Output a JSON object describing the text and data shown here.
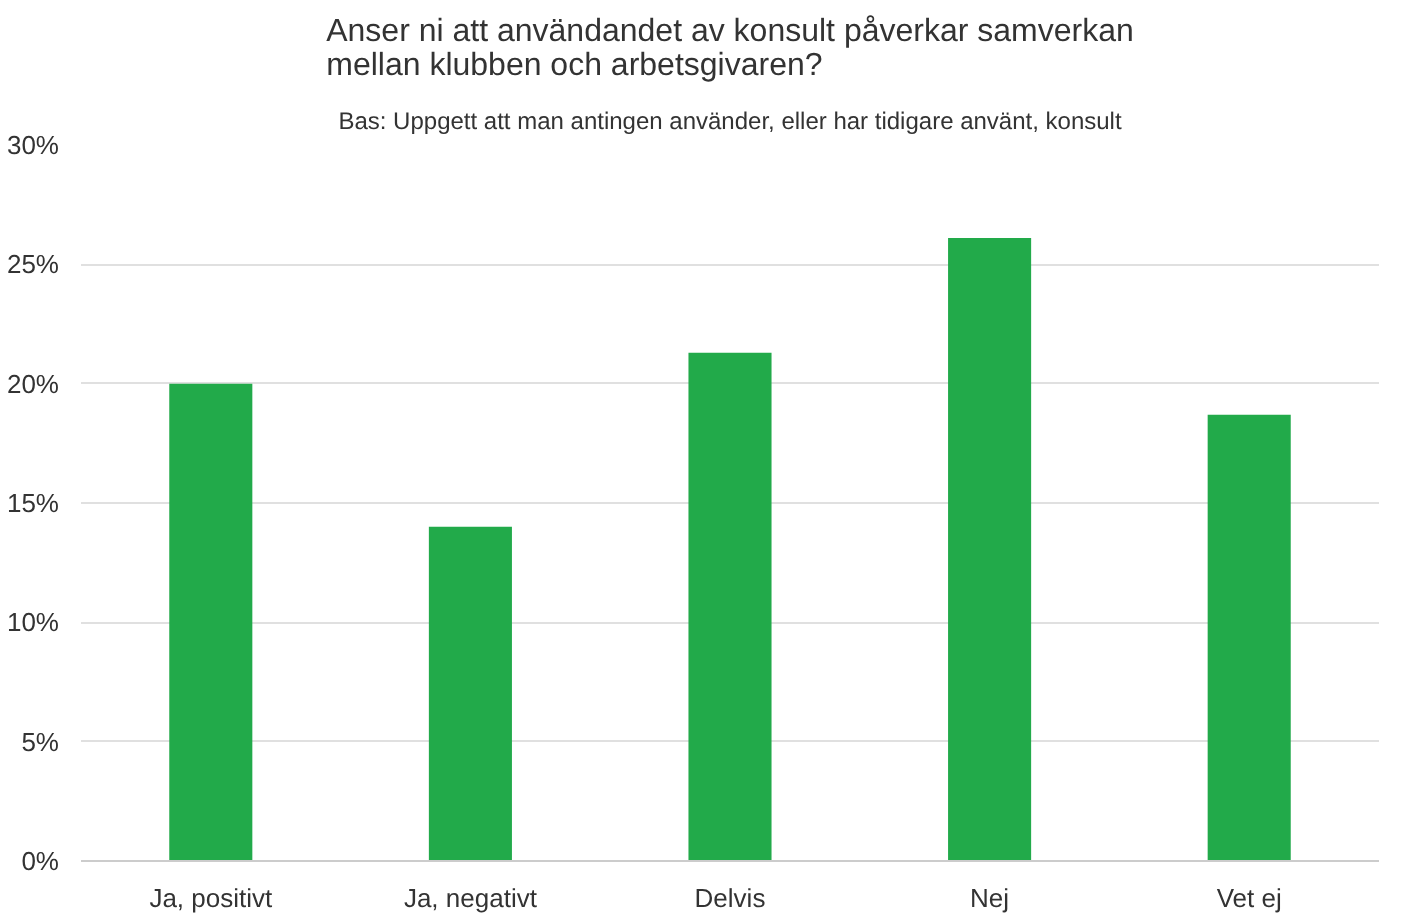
{
  "chart_data": {
    "type": "bar",
    "title": "Anser ni att användandet av konsult påverkar samverkan\nmellan klubben och arbetsgivaren?",
    "subtitle": "Bas: Uppgett att man antingen använder, eller har tidigare använt, konsult",
    "categories": [
      "Ja, positivt",
      "Ja, negativt",
      "Delvis",
      "Nej",
      "Vet ej"
    ],
    "values": [
      20.0,
      14.0,
      21.3,
      26.1,
      18.7
    ],
    "color": "#22aa4a",
    "ylim": [
      0,
      30
    ],
    "yticks": [
      {
        "value": 0,
        "label": "0%"
      },
      {
        "value": 5,
        "label": "5%"
      },
      {
        "value": 10,
        "label": "10%"
      },
      {
        "value": 15,
        "label": "15%"
      },
      {
        "value": 20,
        "label": "20%"
      },
      {
        "value": 25,
        "label": "25%"
      },
      {
        "value": 30,
        "label": "30%"
      }
    ],
    "grid": "y"
  }
}
